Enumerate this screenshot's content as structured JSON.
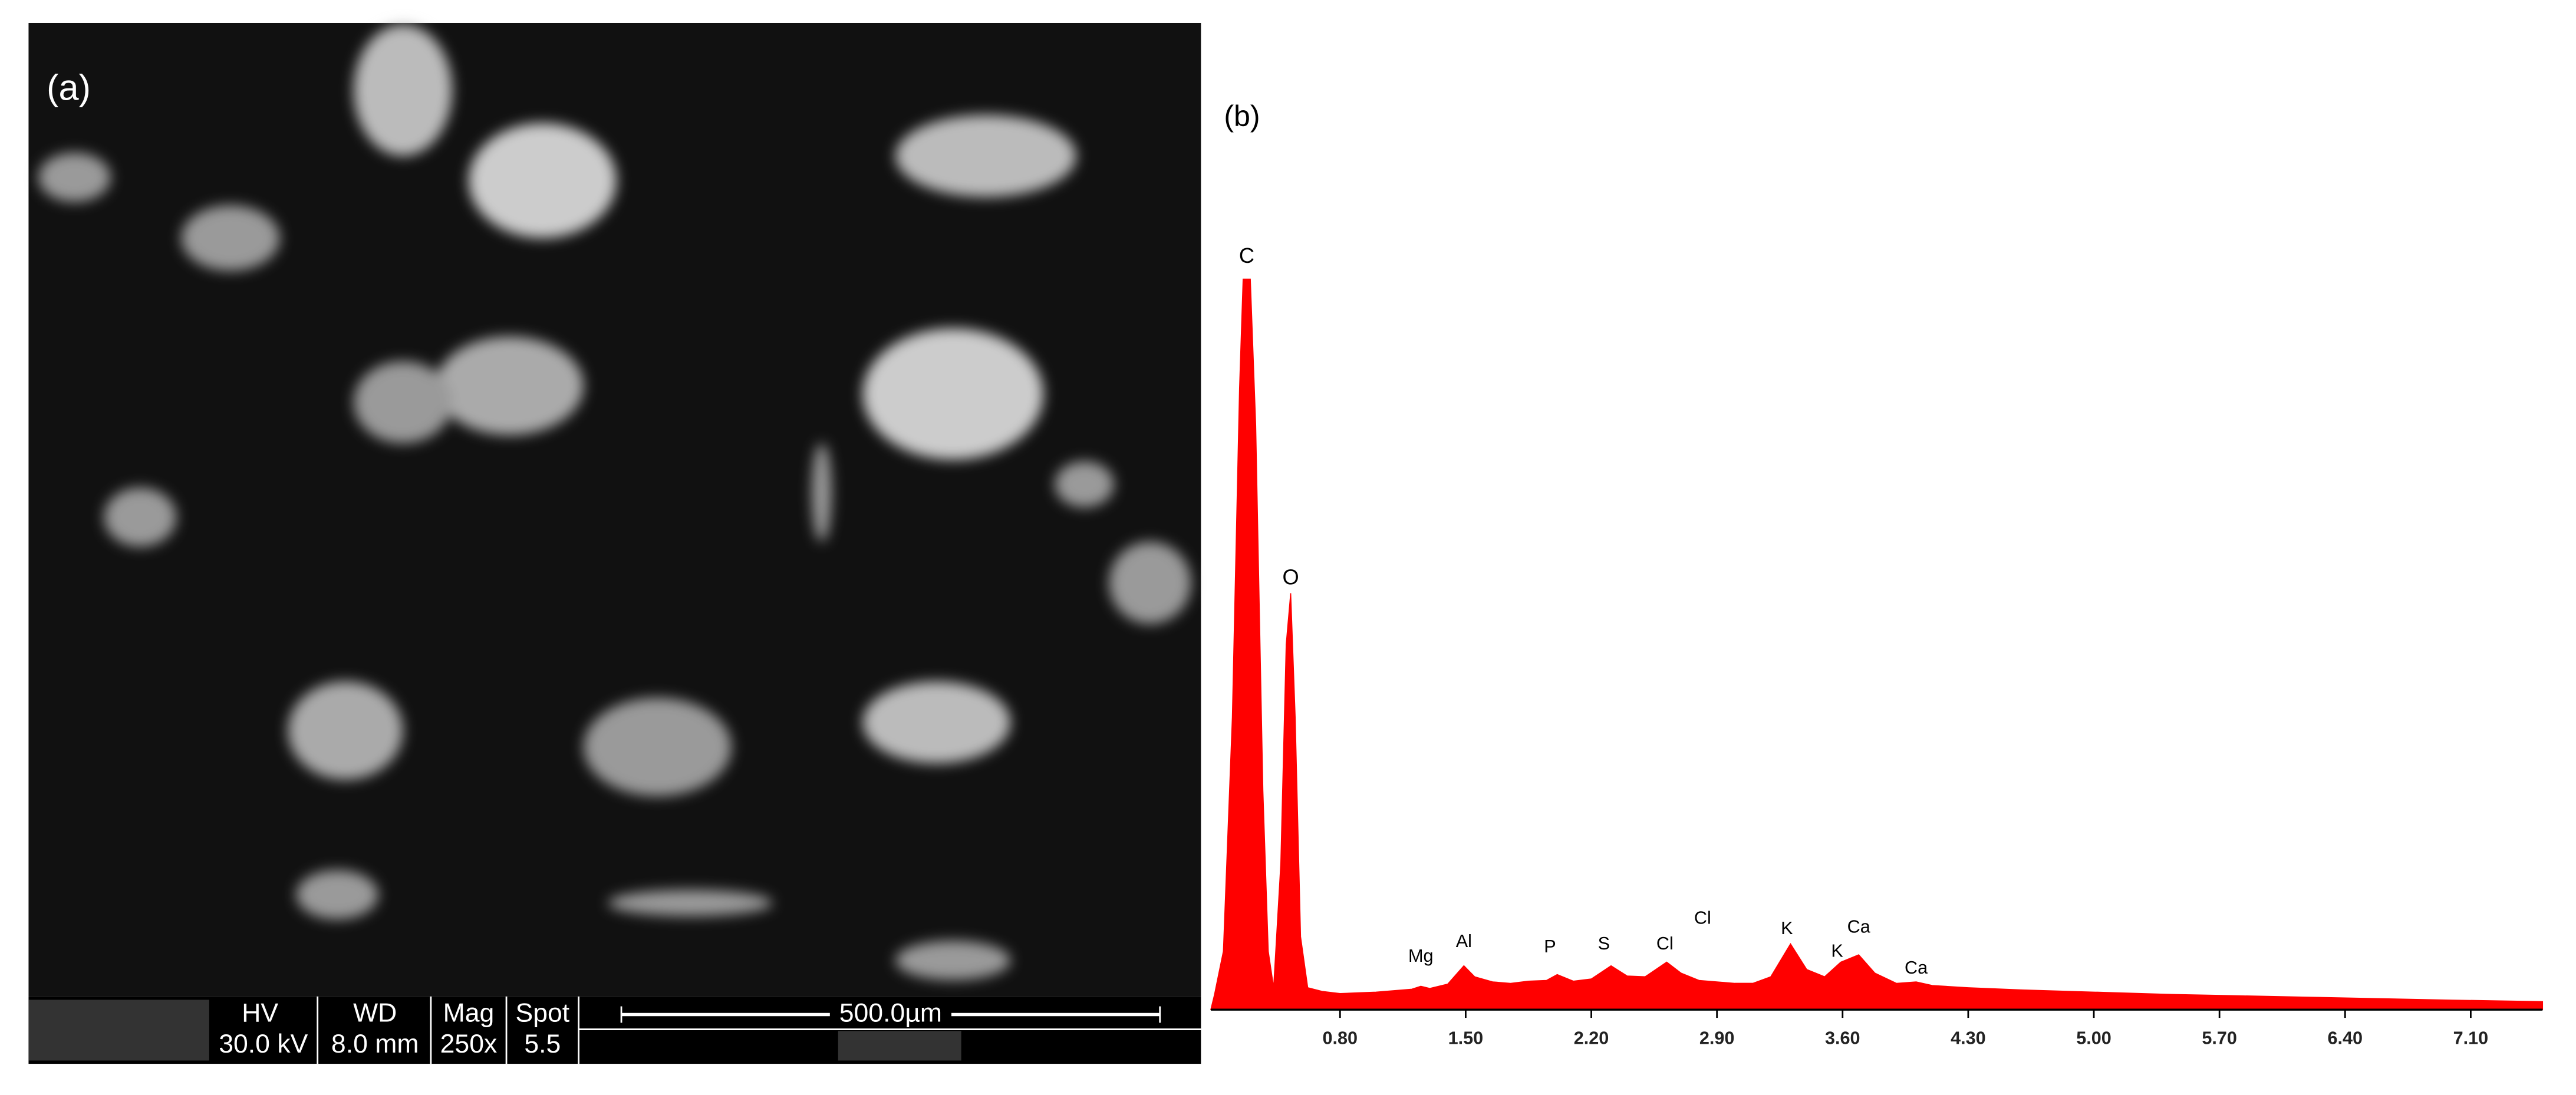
{
  "image_panel": {
    "label": "(a)",
    "databar": {
      "headers": [
        "HV",
        "WD",
        "Mag",
        "Spot"
      ],
      "values": [
        "30.0 kV",
        "8.0 mm",
        "250x",
        "5.5"
      ],
      "scale": "500.0µm"
    }
  },
  "chart_data": {
    "type": "area",
    "label": "(b)",
    "color": "#ff0000",
    "x": [
      0.1,
      0.15,
      0.2,
      0.24,
      0.26,
      0.3,
      0.33,
      0.37,
      0.4,
      0.43,
      0.47,
      0.5,
      0.525,
      0.55,
      0.58,
      0.62,
      0.7,
      0.8,
      0.9,
      1.0,
      1.1,
      1.2,
      1.25,
      1.3,
      1.4,
      1.49,
      1.55,
      1.65,
      1.75,
      1.85,
      1.95,
      2.01,
      2.1,
      2.2,
      2.31,
      2.4,
      2.5,
      2.62,
      2.7,
      2.8,
      2.9,
      3.0,
      3.1,
      3.2,
      3.31,
      3.4,
      3.5,
      3.59,
      3.69,
      3.78,
      3.9,
      4.01,
      4.1,
      4.3,
      4.6,
      5.0,
      5.4,
      5.8,
      6.2,
      6.6,
      7.0,
      7.5
    ],
    "values": [
      2,
      8,
      40,
      85,
      100,
      100,
      80,
      30,
      8,
      3,
      20,
      50,
      57,
      40,
      10,
      3,
      2.5,
      2.2,
      2.3,
      2.4,
      2.6,
      2.8,
      3.2,
      2.9,
      3.5,
      6.0,
      4.5,
      3.8,
      3.6,
      3.9,
      4.0,
      4.8,
      3.9,
      4.2,
      6.0,
      4.6,
      4.5,
      6.5,
      5.0,
      4.0,
      3.8,
      3.6,
      3.6,
      4.5,
      9.0,
      5.5,
      4.5,
      6.5,
      7.5,
      5.0,
      3.6,
      3.8,
      3.3,
      3.0,
      2.7,
      2.4,
      2.1,
      1.9,
      1.7,
      1.5,
      1.3,
      1.1
    ],
    "xlim": [
      0.08,
      7.5
    ],
    "ylim": [
      0,
      100
    ],
    "xticks": [
      {
        "value": 0.8,
        "label": "0.80"
      },
      {
        "value": 1.5,
        "label": "1.50"
      },
      {
        "value": 2.2,
        "label": "2.20"
      },
      {
        "value": 2.9,
        "label": "2.90"
      },
      {
        "value": 3.6,
        "label": "3.60"
      },
      {
        "value": 4.3,
        "label": "4.30"
      },
      {
        "value": 5.0,
        "label": "5.00"
      },
      {
        "value": 5.7,
        "label": "5.70"
      },
      {
        "value": 6.4,
        "label": "6.40"
      },
      {
        "value": 7.1,
        "label": "7.10"
      }
    ],
    "annotations": [
      {
        "text": "C",
        "x": 0.28,
        "y": 103
      },
      {
        "text": "O",
        "x": 0.525,
        "y": 59
      },
      {
        "text": "Mg",
        "x": 1.25,
        "y": 7.2
      },
      {
        "text": "Al",
        "x": 1.49,
        "y": 9.2
      },
      {
        "text": "P",
        "x": 1.97,
        "y": 8.5
      },
      {
        "text": "S",
        "x": 2.27,
        "y": 8.9
      },
      {
        "text": "Cl",
        "x": 2.61,
        "y": 8.9
      },
      {
        "text": "Cl",
        "x": 2.82,
        "y": 12.4
      },
      {
        "text": "K",
        "x": 3.29,
        "y": 11
      },
      {
        "text": "K",
        "x": 3.57,
        "y": 7.9
      },
      {
        "text": "Ca",
        "x": 3.69,
        "y": 11.2
      },
      {
        "text": "Ca",
        "x": 4.01,
        "y": 5.6
      }
    ]
  }
}
